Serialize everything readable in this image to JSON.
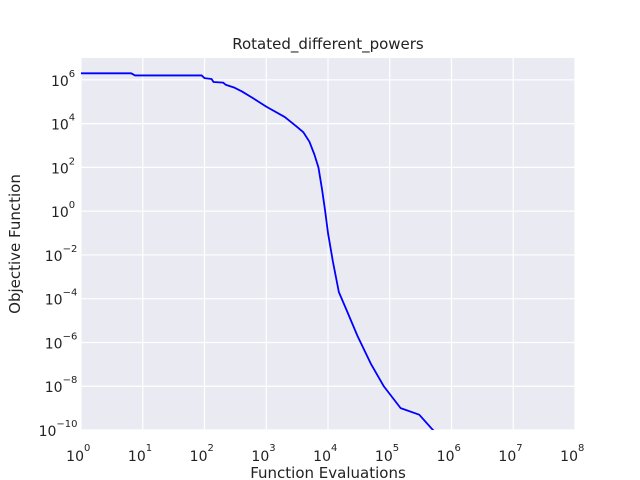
{
  "chart_data": {
    "type": "line",
    "title": "Rotated_different_powers",
    "xlabel": "Function Evaluations",
    "ylabel": "Objective Function",
    "xscale": "log",
    "yscale": "log",
    "xlim": [
      1,
      100000000
    ],
    "ylim": [
      1e-10,
      10000000
    ],
    "x_ticks": [
      {
        "base": "10",
        "exp": "0",
        "value": 1
      },
      {
        "base": "10",
        "exp": "1",
        "value": 10
      },
      {
        "base": "10",
        "exp": "2",
        "value": 100
      },
      {
        "base": "10",
        "exp": "3",
        "value": 1000
      },
      {
        "base": "10",
        "exp": "4",
        "value": 10000
      },
      {
        "base": "10",
        "exp": "5",
        "value": 100000
      },
      {
        "base": "10",
        "exp": "6",
        "value": 1000000
      },
      {
        "base": "10",
        "exp": "7",
        "value": 10000000
      },
      {
        "base": "10",
        "exp": "8",
        "value": 100000000
      }
    ],
    "y_ticks": [
      {
        "base": "10",
        "exp": "6",
        "value": 1000000
      },
      {
        "base": "10",
        "exp": "4",
        "value": 10000
      },
      {
        "base": "10",
        "exp": "2",
        "value": 100
      },
      {
        "base": "10",
        "exp": "0",
        "value": 1
      },
      {
        "base": "10",
        "exp": "−2",
        "value": 0.01
      },
      {
        "base": "10",
        "exp": "−4",
        "value": 0.0001
      },
      {
        "base": "10",
        "exp": "−6",
        "value": 1e-06
      },
      {
        "base": "10",
        "exp": "−8",
        "value": 1e-08
      },
      {
        "base": "10",
        "exp": "−10",
        "value": 1e-10
      }
    ],
    "grid": true,
    "background": "#eaeaf2",
    "grid_color": "#ffffff",
    "series": [
      {
        "color": "#0000ff",
        "points": [
          [
            1,
            2000000
          ],
          [
            6.5,
            2000000
          ],
          [
            7.5,
            1600000
          ],
          [
            90,
            1600000
          ],
          [
            100,
            1200000
          ],
          [
            130,
            1100000
          ],
          [
            140,
            800000
          ],
          [
            200,
            750000
          ],
          [
            220,
            600000
          ],
          [
            300,
            450000
          ],
          [
            400,
            300000
          ],
          [
            600,
            150000
          ],
          [
            1000,
            60000
          ],
          [
            2000,
            20000
          ],
          [
            3000,
            8000
          ],
          [
            4000,
            4000
          ],
          [
            5000,
            1500
          ],
          [
            6000,
            400
          ],
          [
            7000,
            100
          ],
          [
            8000,
            10
          ],
          [
            9000,
            1
          ],
          [
            10000,
            0.1
          ],
          [
            12000,
            0.005
          ],
          [
            15000,
            0.0002
          ],
          [
            20000,
            3e-05
          ],
          [
            30000,
            2e-06
          ],
          [
            50000,
            1e-07
          ],
          [
            80000,
            1e-08
          ],
          [
            150000,
            1e-09
          ],
          [
            300000,
            5e-10
          ],
          [
            500000,
            1e-10
          ],
          [
            900000,
            3e-11
          ]
        ]
      }
    ]
  }
}
